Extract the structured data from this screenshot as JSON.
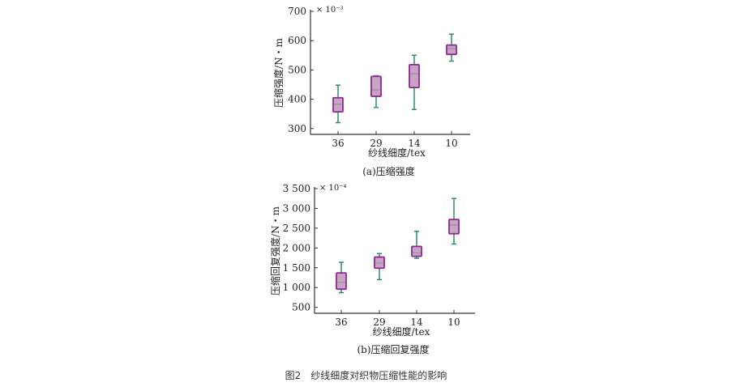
{
  "figure_caption": "图2　纱线细度对织物压缩性能的影响",
  "chart_data": [
    {
      "type": "box",
      "subcaption": "(a)压缩强度",
      "xlabel": "纱线细度/tex",
      "ylabel": "压缩强度/N・m",
      "multiplier": "× 10⁻³",
      "categories": [
        "36",
        "29",
        "14",
        "10"
      ],
      "yticks": [
        "300",
        "400",
        "500",
        "600",
        "700"
      ],
      "ylim": [
        280,
        700
      ],
      "boxes": [
        {
          "whisker_low": 320,
          "q1": 357,
          "median": 383,
          "q3": 405,
          "whisker_high": 448
        },
        {
          "whisker_low": 372,
          "q1": 410,
          "median": 432,
          "q3": 478,
          "whisker_high": 480
        },
        {
          "whisker_low": 365,
          "q1": 440,
          "median": 487,
          "q3": 518,
          "whisker_high": 550
        },
        {
          "whisker_low": 530,
          "q1": 553,
          "median": 573,
          "q3": 585,
          "whisker_high": 622
        }
      ],
      "colors": {
        "box_fill": "#c9a3c6",
        "box_edge": "#8e2a93",
        "whisker": "#2e8b76",
        "median": "#9a9a9a"
      }
    },
    {
      "type": "box",
      "subcaption": "(b)压缩回复强度",
      "xlabel": "纱线细度/tex",
      "ylabel": "压缩回复强度/N・m",
      "multiplier": "× 10⁻⁴",
      "categories": [
        "36",
        "29",
        "14",
        "10"
      ],
      "yticks": [
        "500",
        "1 000",
        "1 500",
        "2 000",
        "2 500",
        "3 000",
        "3 500"
      ],
      "ylim": [
        350,
        3500
      ],
      "boxes": [
        {
          "whisker_low": 870,
          "q1": 960,
          "median": 1130,
          "q3": 1370,
          "whisker_high": 1640
        },
        {
          "whisker_low": 1200,
          "q1": 1490,
          "median": 1620,
          "q3": 1770,
          "whisker_high": 1860
        },
        {
          "whisker_low": 1740,
          "q1": 1790,
          "median": 1880,
          "q3": 2040,
          "whisker_high": 2420
        },
        {
          "whisker_low": 2100,
          "q1": 2360,
          "median": 2580,
          "q3": 2720,
          "whisker_high": 3250
        }
      ],
      "colors": {
        "box_fill": "#c9a3c6",
        "box_edge": "#8e2a93",
        "whisker": "#2e8b76",
        "median": "#9a9a9a"
      }
    }
  ]
}
